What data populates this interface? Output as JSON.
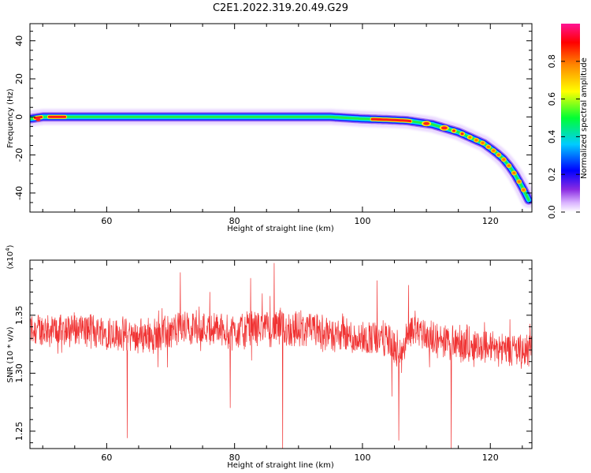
{
  "title": "C2E1.2022.319.20.49.G29",
  "chart_data": [
    {
      "type": "heatmap",
      "title": "C2E1.2022.319.20.49.G29",
      "xlabel": "Height of straight line (km)",
      "ylabel": "Frequency (Hz)",
      "xlim": [
        48,
        126.5
      ],
      "ylim": [
        -50,
        49
      ],
      "xticks": [
        60,
        80,
        100,
        120
      ],
      "yticks": [
        -40,
        -20,
        0,
        20,
        40
      ],
      "ridge": {
        "x": [
          48,
          50,
          55,
          60,
          65,
          70,
          75,
          80,
          85,
          90,
          95,
          100,
          104,
          107,
          109,
          111,
          113,
          115,
          117,
          119,
          121,
          122,
          123,
          124,
          125,
          125.6,
          126.2
        ],
        "y": [
          -1,
          0,
          0,
          0,
          0,
          0,
          0,
          0,
          0,
          0,
          0,
          -1,
          -1.5,
          -2,
          -3,
          -4,
          -6,
          -8,
          -11,
          -14,
          -19,
          -22,
          -26,
          -31,
          -37,
          -41,
          -45
        ]
      },
      "colorbar": {
        "label": "Normalized spectral amplitude",
        "ticks": [
          0.0,
          0.2,
          0.4,
          0.6,
          0.8
        ],
        "range": [
          0,
          1
        ],
        "colormap": "rainbow (purple to red/pink)"
      },
      "grid": false
    },
    {
      "type": "line",
      "xlabel": "Height of straight line (km)",
      "ylabel": "SNR (10 * v/v)",
      "scale_label": "(x10",
      "scale_exponent": "4",
      "scale_close": ")",
      "xlim": [
        48,
        126.5
      ],
      "ylim": [
        1.235,
        1.3975
      ],
      "xticks": [
        60,
        80,
        100,
        120
      ],
      "yticks": [
        "1.25",
        "1.30",
        "1.35"
      ],
      "series": [
        {
          "color": "#f03333",
          "mean_x": [
            48,
            52,
            56,
            60,
            64,
            68,
            72,
            76,
            80,
            84,
            88,
            92,
            96,
            100,
            104,
            106,
            108,
            112,
            116,
            120,
            124,
            126.5
          ],
          "mean_y": [
            1.338,
            1.337,
            1.338,
            1.336,
            1.332,
            1.333,
            1.34,
            1.339,
            1.336,
            1.34,
            1.338,
            1.337,
            1.332,
            1.33,
            1.33,
            1.312,
            1.34,
            1.327,
            1.325,
            1.323,
            1.32,
            1.319
          ],
          "spikes": [
            {
              "x": 63.2,
              "y": 1.244
            },
            {
              "x": 69.5,
              "y": 1.305
            },
            {
              "x": 71.5,
              "y": 1.387
            },
            {
              "x": 79.3,
              "y": 1.27
            },
            {
              "x": 82.5,
              "y": 1.382
            },
            {
              "x": 86.2,
              "y": 1.395
            },
            {
              "x": 87.5,
              "y": 1.232
            },
            {
              "x": 102.3,
              "y": 1.38
            },
            {
              "x": 104.6,
              "y": 1.28
            },
            {
              "x": 105.7,
              "y": 1.242
            },
            {
              "x": 107.2,
              "y": 1.376
            },
            {
              "x": 113.9,
              "y": 1.235
            }
          ]
        }
      ],
      "grid": false
    }
  ]
}
